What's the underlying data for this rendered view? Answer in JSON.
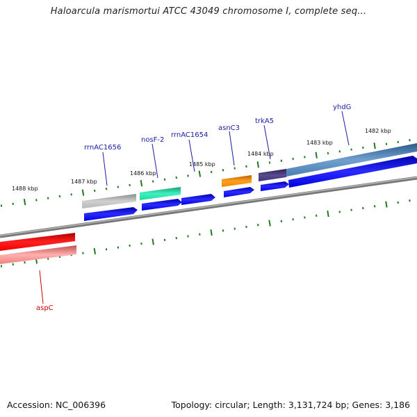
{
  "title": "Haloarcula marismortui ATCC 43049 chromosome I, complete seq...",
  "footer": {
    "accession": "Accession: NC_006396",
    "summary": "Topology: circular; Length: 3,131,724 bp; Genes: 3,186"
  },
  "tick_labels": [
    "1488 kbp",
    "1487 kbp",
    "1486 kbp",
    "1485 kbp",
    "1484 kbp",
    "1483 kbp",
    "1482 kbp"
  ],
  "genes": [
    {
      "name": "rrnAC1656",
      "color": "#1a1aa6"
    },
    {
      "name": "nosF-2",
      "color": "#1a1aa6"
    },
    {
      "name": "rrnAC1654",
      "color": "#1a1aa6"
    },
    {
      "name": "asnC3",
      "color": "#1a1aa6"
    },
    {
      "name": "trkA5",
      "color": "#1a1aa6"
    },
    {
      "name": "yhdG",
      "color": "#1a1aa6"
    },
    {
      "name": "aspC",
      "color": "#cc0000"
    }
  ],
  "colors": {
    "backbone": "#888888",
    "tick": "#1e7a1e",
    "cds": "#0000ee",
    "red_feature": "#ee0000",
    "pink_feature": "#ee8080",
    "gray_feature": "#aaaaaa",
    "teal_feature": "#22ddaa",
    "orange_feature": "#ee8800",
    "purple_feature": "#443377",
    "steelblue_feature": "#4a7fb0"
  }
}
